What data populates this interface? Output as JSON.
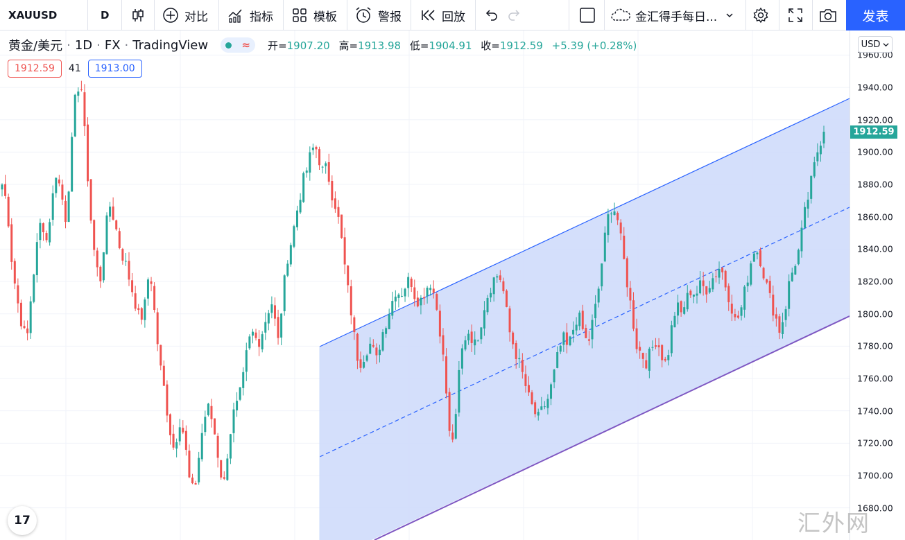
{
  "toolbar": {
    "symbol": "XAUUSD",
    "interval": "D",
    "compare_label": "对比",
    "indicators_label": "指标",
    "templates_label": "模板",
    "alert_label": "警报",
    "replay_label": "回放",
    "layout_name": "金汇得手每日...",
    "publish_label": "发表",
    "icons": [
      "candles-icon",
      "plus-circle-icon",
      "indicators-icon",
      "templates-icon",
      "alarm-icon",
      "replay-icon",
      "undo-icon",
      "redo-icon",
      "layout-icon",
      "cloud-icon",
      "chevron-down-icon",
      "gear-icon",
      "fullscreen-icon",
      "camera-icon"
    ]
  },
  "legend": {
    "name": "黄金/美元",
    "interval": "1D",
    "source": "FX",
    "provider": "TradingView",
    "open_label": "开",
    "open": "1907.20",
    "high_label": "高",
    "high": "1913.98",
    "low_label": "低",
    "low": "1904.91",
    "close_label": "收",
    "close": "1912.59",
    "change": "+5.39 (+0.28%)"
  },
  "badges": {
    "bid": "1912.59",
    "spread": "41",
    "ask": "1913.00"
  },
  "price_axis": {
    "currency": "USD",
    "ticks": [
      "1960.00",
      "1940.00",
      "1920.00",
      "1900.00",
      "1880.00",
      "1860.00",
      "1840.00",
      "1820.00",
      "1800.00",
      "1780.00",
      "1760.00",
      "1740.00",
      "1720.00",
      "1700.00",
      "1680.00"
    ],
    "last_price": "1912.59"
  },
  "watermark": "汇外网",
  "logo_text": "17",
  "colors": {
    "up": "#26a69a",
    "down": "#ef5350",
    "channel_fill": "#cfdcfb",
    "channel_line": "#2962ff",
    "channel_lower": "#7e57c2",
    "accent": "#2962ff"
  },
  "chart_data": {
    "type": "candlestick",
    "instrument": "XAUUSD",
    "ylim": [
      1675,
      1965
    ],
    "close_path": [
      1880,
      1868,
      1832,
      1810,
      1794,
      1782,
      1815,
      1840,
      1860,
      1845,
      1866,
      1888,
      1875,
      1858,
      1898,
      1938,
      1944,
      1902,
      1860,
      1830,
      1822,
      1852,
      1868,
      1855,
      1840,
      1832,
      1820,
      1808,
      1795,
      1805,
      1830,
      1800,
      1770,
      1752,
      1730,
      1715,
      1735,
      1725,
      1698,
      1688,
      1712,
      1735,
      1742,
      1730,
      1710,
      1692,
      1720,
      1738,
      1745,
      1760,
      1782,
      1788,
      1782,
      1790,
      1802,
      1808,
      1780,
      1810,
      1835,
      1848,
      1865,
      1880,
      1890,
      1902,
      1902,
      1888,
      1890,
      1875,
      1865,
      1845,
      1820,
      1800,
      1775,
      1770,
      1778,
      1782,
      1770,
      1785,
      1795,
      1805,
      1815,
      1812,
      1818,
      1822,
      1810,
      1808,
      1815,
      1820,
      1810,
      1790,
      1762,
      1722,
      1725,
      1770,
      1785,
      1790,
      1780,
      1790,
      1805,
      1815,
      1822,
      1825,
      1812,
      1790,
      1780,
      1770,
      1760,
      1748,
      1740,
      1735,
      1742,
      1748,
      1760,
      1775,
      1785,
      1778,
      1790,
      1800,
      1790,
      1780,
      1795,
      1810,
      1835,
      1858,
      1868,
      1860,
      1840,
      1820,
      1800,
      1780,
      1775,
      1770,
      1778,
      1785,
      1775,
      1768,
      1790,
      1805,
      1800,
      1808,
      1815,
      1812,
      1818,
      1815,
      1820,
      1825,
      1830,
      1818,
      1808,
      1795,
      1800,
      1815,
      1830,
      1842,
      1835,
      1822,
      1810,
      1800,
      1790,
      1800,
      1820,
      1830,
      1840,
      1860,
      1875,
      1890,
      1905,
      1912.59
    ]
  }
}
